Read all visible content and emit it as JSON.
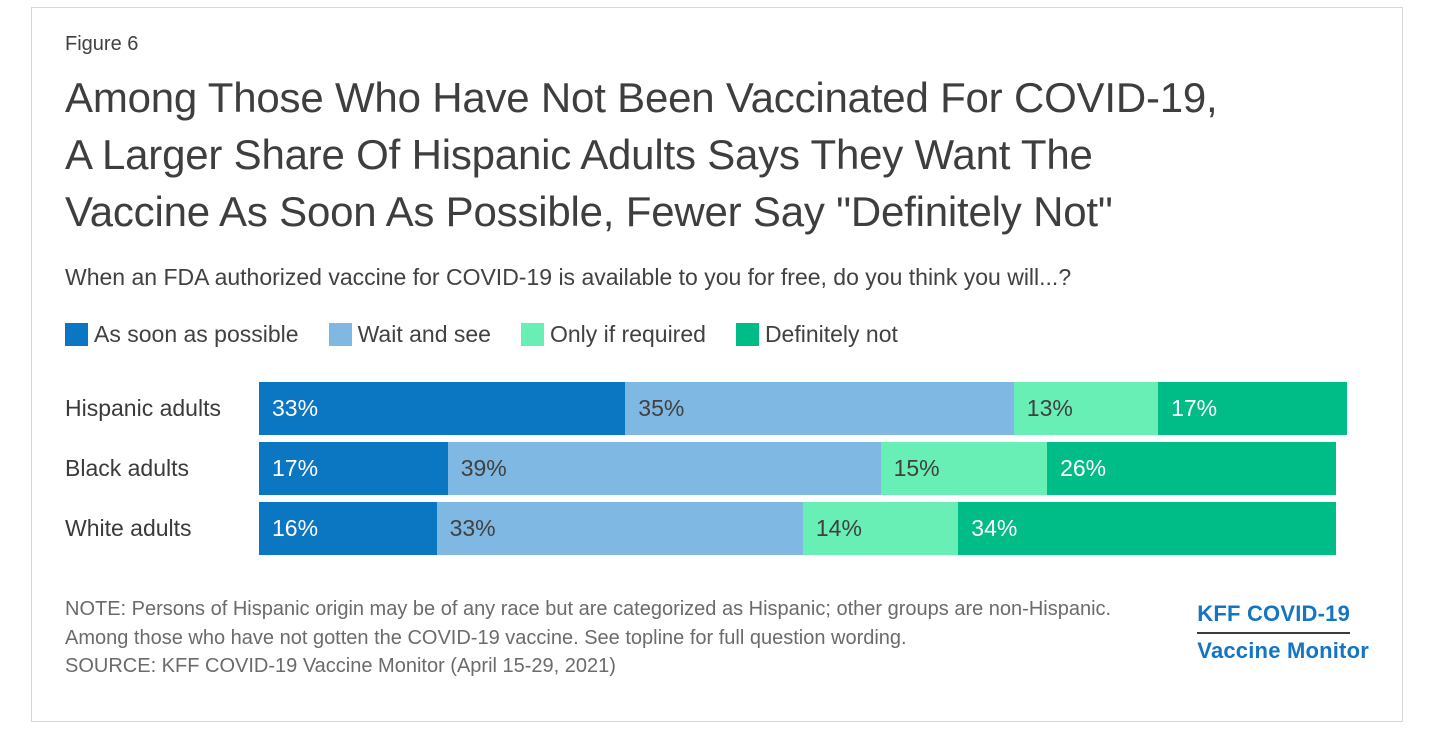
{
  "figure_label": "Figure 6",
  "title_lines": [
    "Among Those Who Have Not Been Vaccinated For COVID-19,",
    "A Larger Share Of Hispanic Adults Says They Want The",
    "Vaccine As Soon As Possible, Fewer Say \"Definitely Not\""
  ],
  "subtitle": "When an FDA authorized vaccine for COVID-19 is available to you for free, do you think you will...?",
  "chart_data": {
    "type": "bar",
    "stacked": true,
    "orientation": "horizontal",
    "value_suffix": "%",
    "xlim": [
      0,
      100
    ],
    "legend_position": "top",
    "grid": false,
    "categories": [
      "Hispanic adults",
      "Black adults",
      "White adults"
    ],
    "series": [
      {
        "name": "As soon as possible",
        "color": "#0b76c2",
        "label_color": "#ffffff",
        "values": [
          33,
          17,
          16
        ]
      },
      {
        "name": "Wait and see",
        "color": "#7fb8e2",
        "label_color": "#404040",
        "values": [
          35,
          39,
          33
        ]
      },
      {
        "name": "Only if required",
        "color": "#68efb6",
        "label_color": "#404040",
        "values": [
          13,
          15,
          14
        ]
      },
      {
        "name": "Definitely not",
        "color": "#00bc87",
        "label_color": "#ffffff",
        "values": [
          17,
          26,
          34
        ]
      }
    ]
  },
  "footer": {
    "note": "NOTE: Persons of Hispanic origin may be of any race but are categorized as Hispanic; other groups are non-Hispanic. Among those who have not gotten the COVID-19 vaccine. See topline for full question wording.",
    "source": "SOURCE: KFF COVID-19 Vaccine Monitor (April 15-29, 2021)"
  },
  "logo": {
    "line1": "KFF COVID-19",
    "line2": "Vaccine Monitor",
    "color": "#1375c4"
  }
}
